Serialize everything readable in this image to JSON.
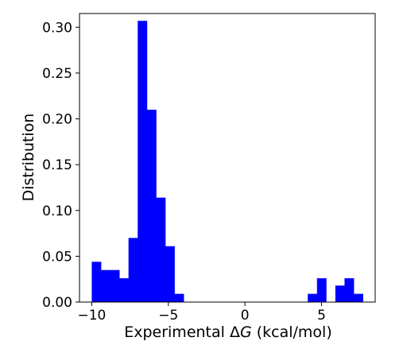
{
  "chart_data": {
    "type": "bar",
    "subtype": "histogram",
    "bar_color": "#0000ff",
    "xlabel_prefix": "Experimental Δ",
    "xlabel_var": "G",
    "xlabel_suffix": " (kcal/mol)",
    "ylabel": "Distribution",
    "xlim": [
      -10.8,
      8.5
    ],
    "ylim": [
      0,
      0.315
    ],
    "x_ticks": [
      -10,
      -5,
      0,
      5
    ],
    "x_tick_labels": [
      "−10",
      "−5",
      "0",
      "5"
    ],
    "y_ticks": [
      0,
      0.05,
      0.1,
      0.15,
      0.2,
      0.25,
      0.3
    ],
    "y_tick_labels": [
      "0.00",
      "0.05",
      "0.10",
      "0.15",
      "0.20",
      "0.25",
      "0.30"
    ],
    "grid": false,
    "bins": [
      {
        "x0": -10.0,
        "x1": -9.4,
        "value": 0.044
      },
      {
        "x0": -9.4,
        "x1": -8.8,
        "value": 0.035
      },
      {
        "x0": -8.8,
        "x1": -8.2,
        "value": 0.035
      },
      {
        "x0": -8.2,
        "x1": -7.6,
        "value": 0.026
      },
      {
        "x0": -7.6,
        "x1": -7.0,
        "value": 0.07
      },
      {
        "x0": -7.0,
        "x1": -6.4,
        "value": 0.307
      },
      {
        "x0": -6.4,
        "x1": -5.8,
        "value": 0.21
      },
      {
        "x0": -5.8,
        "x1": -5.2,
        "value": 0.114
      },
      {
        "x0": -5.2,
        "x1": -4.6,
        "value": 0.061
      },
      {
        "x0": -4.6,
        "x1": -4.0,
        "value": 0.009
      },
      {
        "x0": 4.1,
        "x1": 4.7,
        "value": 0.009
      },
      {
        "x0": 4.7,
        "x1": 5.3,
        "value": 0.026
      },
      {
        "x0": 5.3,
        "x1": 5.9,
        "value": 0.0
      },
      {
        "x0": 5.9,
        "x1": 6.5,
        "value": 0.018
      },
      {
        "x0": 6.5,
        "x1": 7.1,
        "value": 0.026
      },
      {
        "x0": 7.1,
        "x1": 7.7,
        "value": 0.009
      }
    ]
  }
}
